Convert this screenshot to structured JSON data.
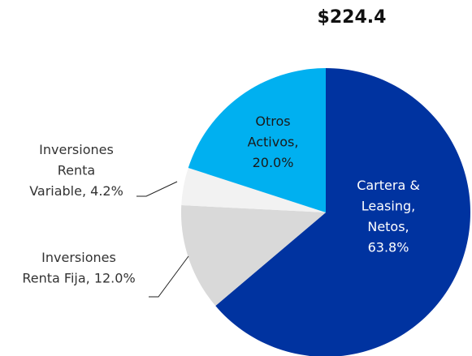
{
  "chart_data": {
    "type": "pie",
    "title": "$224.4",
    "values": [
      63.8,
      12.0,
      4.2,
      20.0
    ],
    "value_labels": [
      "Cartera & Leasing, Netos, 63.8%",
      "Inversiones Renta Fija, 12.0%",
      "Inversiones Renta Variable, 4.2%",
      "Otros Activos, 20.0%"
    ],
    "colors": [
      "#0033a0",
      "#d9d9d9",
      "#f2f2f2",
      "#00b0f0"
    ]
  }
}
